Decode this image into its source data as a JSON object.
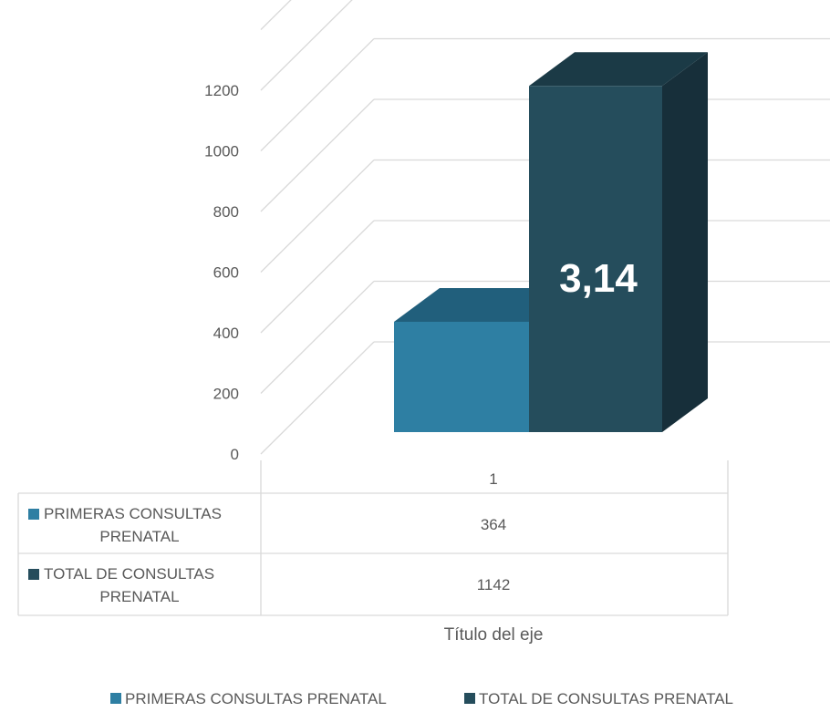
{
  "chart_data": {
    "type": "bar",
    "style": "3d-column-with-data-table",
    "categories": [
      "1"
    ],
    "series": [
      {
        "name": "PRIMERAS CONSULTAS PRENATAL",
        "values": [
          364
        ],
        "color": "#2e7fa3",
        "top_color": "#215f7c",
        "side_color": "#1c5069"
      },
      {
        "name": "TOTAL DE CONSULTAS PRENATAL",
        "values": [
          1142
        ],
        "color": "#254d5c",
        "top_color": "#1b3a46",
        "side_color": "#172f3a"
      }
    ],
    "y_ticks": [
      0,
      200,
      400,
      600,
      800,
      1000,
      1200
    ],
    "ylim": [
      0,
      1400
    ],
    "annotation": "3,14",
    "xlabel": "Título del eje",
    "table_rows": [
      {
        "label_line1": "PRIMERAS CONSULTAS",
        "label_line2": "PRENATAL",
        "value": "364"
      },
      {
        "label_line1": "TOTAL DE CONSULTAS",
        "label_line2": "PRENATAL",
        "value": "1142"
      }
    ],
    "grid": true,
    "legend_position": "bottom"
  }
}
